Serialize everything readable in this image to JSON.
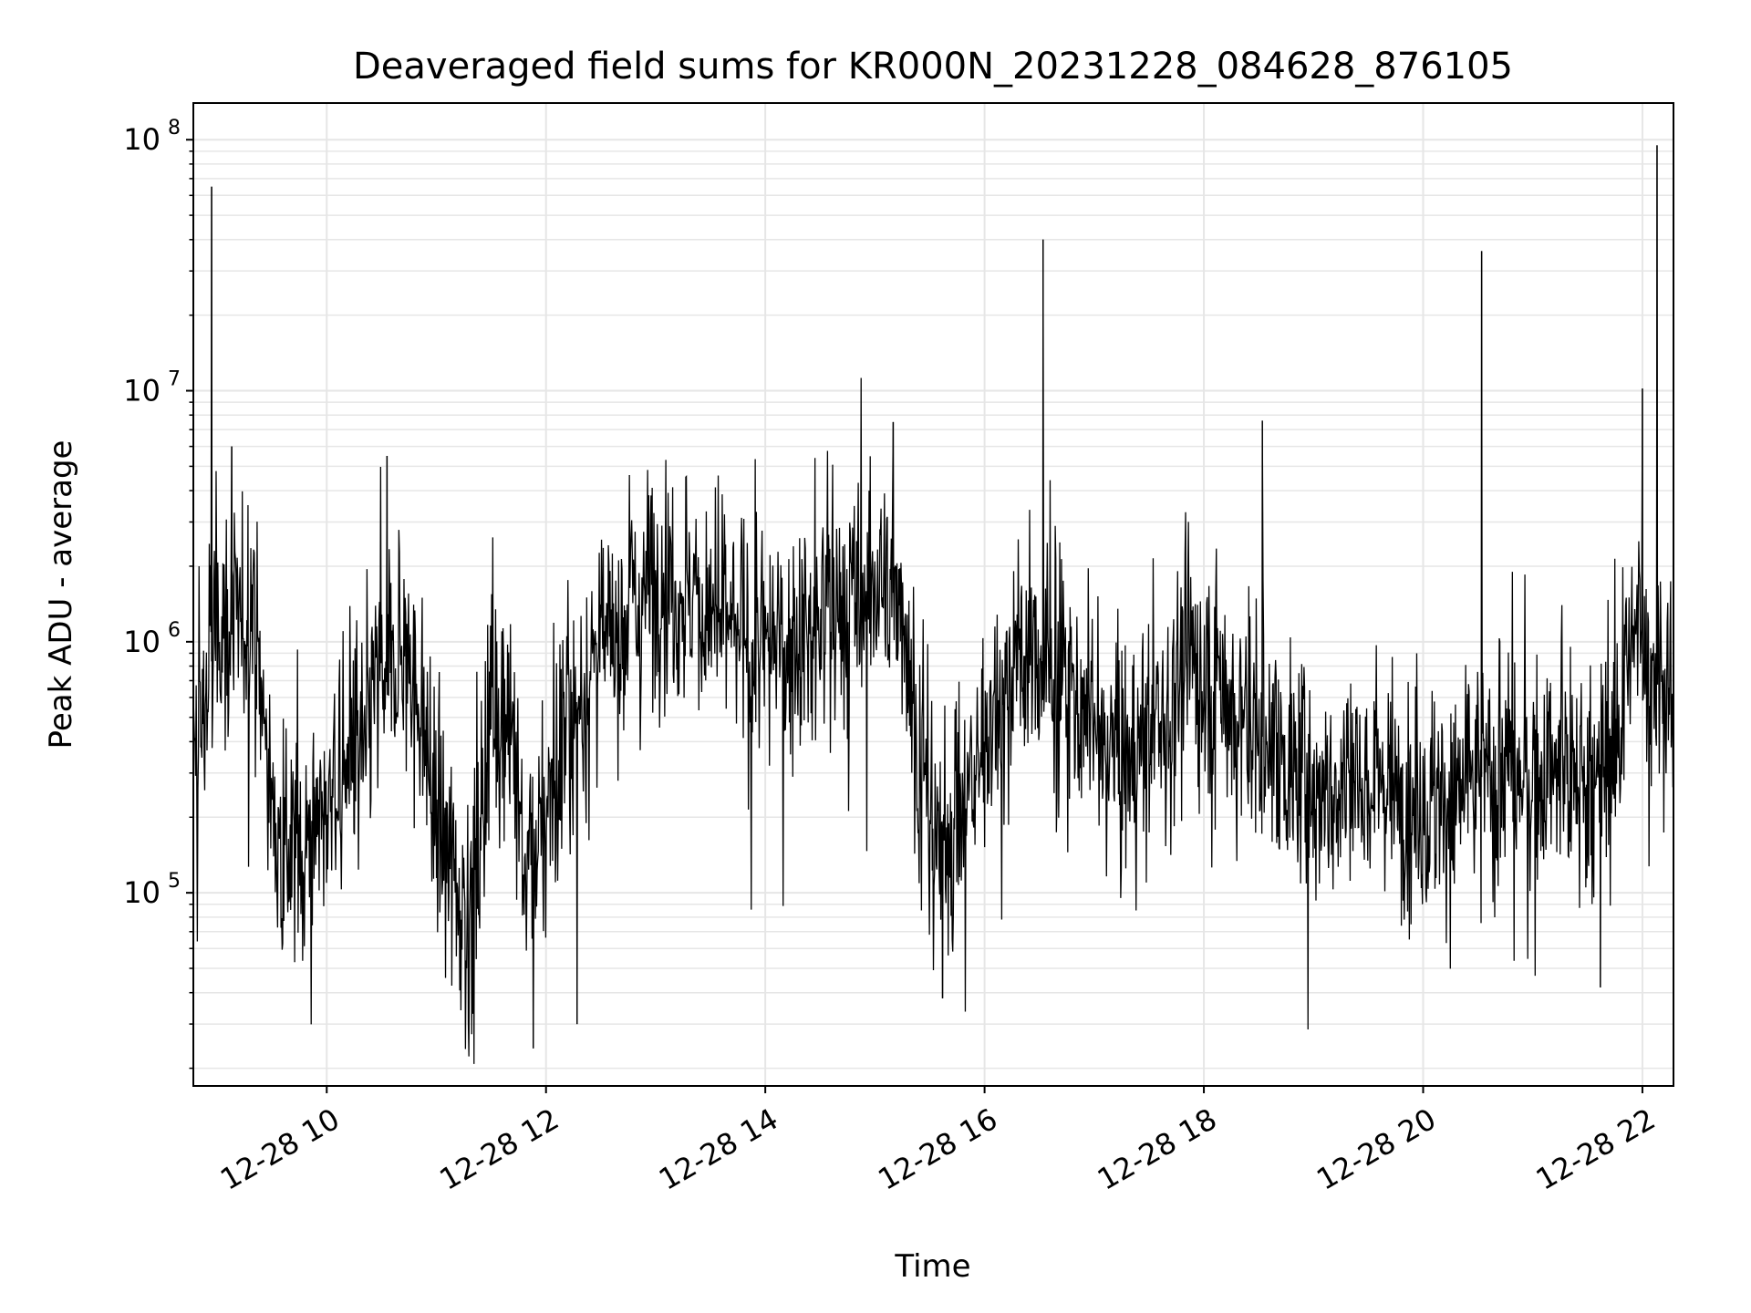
{
  "chart_data": {
    "type": "line",
    "title": "Deaveraged field sums for KR000N_20231228_084628_876105",
    "xlabel": "Time",
    "ylabel": "Peak ADU - average",
    "yscale": "log",
    "ylim": [
      17000,
      140000000
    ],
    "xlim": [
      "2023-12-28 08:47",
      "2023-12-28 22:17"
    ],
    "grid": true,
    "line_color": "#000000",
    "grid_color": "#e6e6e6",
    "x_ticks": [
      {
        "x": "2023-12-28 10:00",
        "label": "12-28 10"
      },
      {
        "x": "2023-12-28 12:00",
        "label": "12-28 12"
      },
      {
        "x": "2023-12-28 14:00",
        "label": "12-28 14"
      },
      {
        "x": "2023-12-28 16:00",
        "label": "12-28 16"
      },
      {
        "x": "2023-12-28 18:00",
        "label": "12-28 18"
      },
      {
        "x": "2023-12-28 20:00",
        "label": "12-28 20"
      },
      {
        "x": "2023-12-28 22:00",
        "label": "12-28 22"
      }
    ],
    "y_ticks": [
      {
        "value": 100000,
        "base": "10",
        "exp": "5"
      },
      {
        "value": 1000000,
        "base": "10",
        "exp": "6"
      },
      {
        "value": 10000000,
        "base": "10",
        "exp": "7"
      },
      {
        "value": 100000000,
        "base": "10",
        "exp": "8"
      }
    ],
    "series": [
      {
        "values": [
          [
            "2023-12-28 08:47",
            300000
          ],
          [
            "2023-12-28 08:55",
            700000
          ],
          [
            "2023-12-28 09:02",
            1300000
          ],
          [
            "2023-12-28 09:10",
            1000000
          ],
          [
            "2023-12-28 09:20",
            1500000
          ],
          [
            "2023-12-28 09:30",
            200000
          ],
          [
            "2023-12-28 09:40",
            150000
          ],
          [
            "2023-12-28 09:50",
            180000
          ],
          [
            "2023-12-28 10:00",
            200000
          ],
          [
            "2023-12-28 10:10",
            300000
          ],
          [
            "2023-12-28 10:20",
            400000
          ],
          [
            "2023-12-28 10:30",
            800000
          ],
          [
            "2023-12-28 10:40",
            900000
          ],
          [
            "2023-12-28 10:50",
            600000
          ],
          [
            "2023-12-28 11:00",
            200000
          ],
          [
            "2023-12-28 11:10",
            120000
          ],
          [
            "2023-12-28 11:20",
            70000
          ],
          [
            "2023-12-28 11:30",
            600000
          ],
          [
            "2023-12-28 11:40",
            500000
          ],
          [
            "2023-12-28 11:50",
            100000
          ],
          [
            "2023-12-28 12:00",
            200000
          ],
          [
            "2023-12-28 12:10",
            400000
          ],
          [
            "2023-12-28 12:20",
            600000
          ],
          [
            "2023-12-28 12:30",
            1000000
          ],
          [
            "2023-12-28 12:40",
            1200000
          ],
          [
            "2023-12-28 12:50",
            1500000
          ],
          [
            "2023-12-28 13:00",
            1800000
          ],
          [
            "2023-12-28 13:15",
            1600000
          ],
          [
            "2023-12-28 13:30",
            1300000
          ],
          [
            "2023-12-28 13:45",
            1000000
          ],
          [
            "2023-12-28 14:00",
            900000
          ],
          [
            "2023-12-28 14:15",
            1000000
          ],
          [
            "2023-12-28 14:30",
            1200000
          ],
          [
            "2023-12-28 14:45",
            1400000
          ],
          [
            "2023-12-28 15:00",
            1500000
          ],
          [
            "2023-12-28 15:15",
            1600000
          ],
          [
            "2023-12-28 15:25",
            300000
          ],
          [
            "2023-12-28 15:35",
            150000
          ],
          [
            "2023-12-28 15:45",
            200000
          ],
          [
            "2023-12-28 15:55",
            300000
          ],
          [
            "2023-12-28 16:05",
            500000
          ],
          [
            "2023-12-28 16:15",
            700000
          ],
          [
            "2023-12-28 16:25",
            900000
          ],
          [
            "2023-12-28 16:35",
            700000
          ],
          [
            "2023-12-28 16:50",
            600000
          ],
          [
            "2023-12-28 17:05",
            400000
          ],
          [
            "2023-12-28 17:20",
            350000
          ],
          [
            "2023-12-28 17:35",
            450000
          ],
          [
            "2023-12-28 17:50",
            800000
          ],
          [
            "2023-12-28 18:05",
            700000
          ],
          [
            "2023-12-28 18:20",
            500000
          ],
          [
            "2023-12-28 18:35",
            400000
          ],
          [
            "2023-12-28 18:50",
            300000
          ],
          [
            "2023-12-28 19:05",
            250000
          ],
          [
            "2023-12-28 19:20",
            280000
          ],
          [
            "2023-12-28 19:35",
            300000
          ],
          [
            "2023-12-28 19:50",
            250000
          ],
          [
            "2023-12-28 20:05",
            220000
          ],
          [
            "2023-12-28 20:20",
            250000
          ],
          [
            "2023-12-28 20:35",
            300000
          ],
          [
            "2023-12-28 20:50",
            300000
          ],
          [
            "2023-12-28 21:05",
            280000
          ],
          [
            "2023-12-28 21:20",
            300000
          ],
          [
            "2023-12-28 21:35",
            250000
          ],
          [
            "2023-12-28 21:45",
            400000
          ],
          [
            "2023-12-28 21:55",
            1000000
          ],
          [
            "2023-12-28 22:05",
            800000
          ],
          [
            "2023-12-28 22:17",
            500000
          ]
        ]
      }
    ],
    "spikes": [
      [
        "2023-12-28 08:57",
        65000000
      ],
      [
        "2023-12-28 09:08",
        6000000
      ],
      [
        "2023-12-28 10:33",
        5500000
      ],
      [
        "2023-12-28 15:10",
        7500000
      ],
      [
        "2023-12-28 16:32",
        40000000
      ],
      [
        "2023-12-28 18:32",
        7600000
      ],
      [
        "2023-12-28 20:32",
        36000000
      ],
      [
        "2023-12-28 22:00",
        10200000
      ],
      [
        "2023-12-28 22:08",
        95000000
      ]
    ],
    "dips": [
      [
        "2023-12-28 11:20",
        33000
      ],
      [
        "2023-12-28 11:53",
        24000
      ],
      [
        "2023-12-28 12:17",
        30000
      ],
      [
        "2023-12-28 15:37",
        38000
      ],
      [
        "2023-12-28 21:37",
        42000
      ]
    ]
  }
}
